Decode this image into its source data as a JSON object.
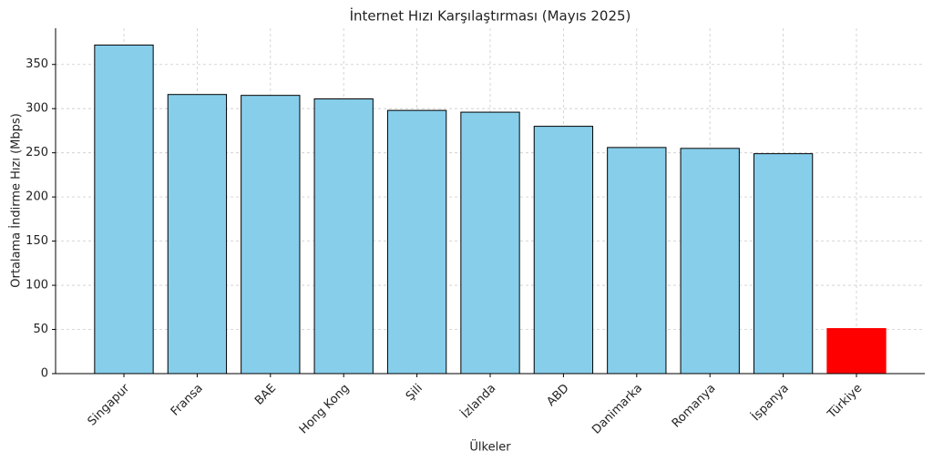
{
  "chart_data": {
    "type": "bar",
    "title": "İnternet Hızı Karşılaştırması (Mayıs 2025)",
    "x_label": "Ülkeler",
    "y_label": "Ortalama İndirme Hızı (Mbps)",
    "categories": [
      "Singapur",
      "Fransa",
      "BAE",
      "Hong Kong",
      "Şili",
      "İzlanda",
      "ABD",
      "Danimarka",
      "Romanya",
      "İspanya",
      "Türkiye"
    ],
    "values": [
      372,
      316,
      315,
      311,
      298,
      296,
      280,
      256,
      255,
      249,
      51
    ],
    "colors": [
      "#87ceeb",
      "#87ceeb",
      "#87ceeb",
      "#87ceeb",
      "#87ceeb",
      "#87ceeb",
      "#87ceeb",
      "#87ceeb",
      "#87ceeb",
      "#87ceeb",
      "#ff0000"
    ],
    "ylim": [
      0,
      391
    ],
    "yticks": [
      0,
      50,
      100,
      150,
      200,
      250,
      300,
      350
    ],
    "grid": true
  }
}
